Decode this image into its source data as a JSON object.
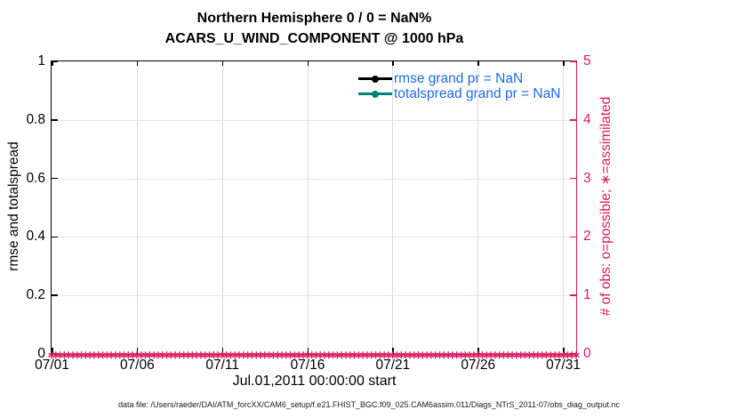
{
  "chart_data": {
    "type": "line",
    "title": "Northern Hemisphere 0 / 0 = NaN%",
    "subtitle": "ACARS_U_WIND_COMPONENT @ 1000 hPa",
    "xlabel": "Jul.01,2011 00:00:00 start",
    "ylabel_left": "rmse and totalspread",
    "ylabel_right": "# of obs: o=possible; ∗=assimilated",
    "ylim_left": [
      0,
      1
    ],
    "ylim_right": [
      0,
      5
    ],
    "x_tick_labels": [
      "07/01",
      "07/06",
      "07/11",
      "07/16",
      "07/21",
      "07/26",
      "07/31"
    ],
    "y_tick_labels_left": [
      "0",
      "0.2",
      "0.4",
      "0.6",
      "0.8",
      "1"
    ],
    "y_tick_labels_right": [
      "0",
      "1",
      "2",
      "3",
      "4",
      "5"
    ],
    "grid": true,
    "legend_position": "top-right-inside",
    "legend": [
      {
        "label": "rmse grand pr = NaN",
        "line_color": "#000000"
      },
      {
        "label": "totalspread grand pr = NaN",
        "line_color": "#00827a"
      }
    ],
    "series": [
      {
        "name": "rmse",
        "axis": "left",
        "values": "all NaN - no line drawn"
      },
      {
        "name": "totalspread",
        "axis": "left",
        "values": "all NaN - no line drawn"
      },
      {
        "name": "assimilated obs count",
        "axis": "right",
        "marker": "∗",
        "constant_value": 0,
        "n_points": 124
      }
    ],
    "colors": {
      "right_axis": "#d81b60",
      "legend_text": "#1e6ae8",
      "totalspread_line": "#00827a",
      "rmse_line": "#000000",
      "grid_vertical": "#d9d9d9",
      "grid_horizontal": "#f8dae6"
    }
  },
  "footer": "data file: /Users/raeder/DAI/ATM_forcXX/CAM6_setup/f.e21.FHIST_BGC.f09_025.CAM6assim.011/Diags_NTrS_2011-07/obs_diag_output.nc"
}
